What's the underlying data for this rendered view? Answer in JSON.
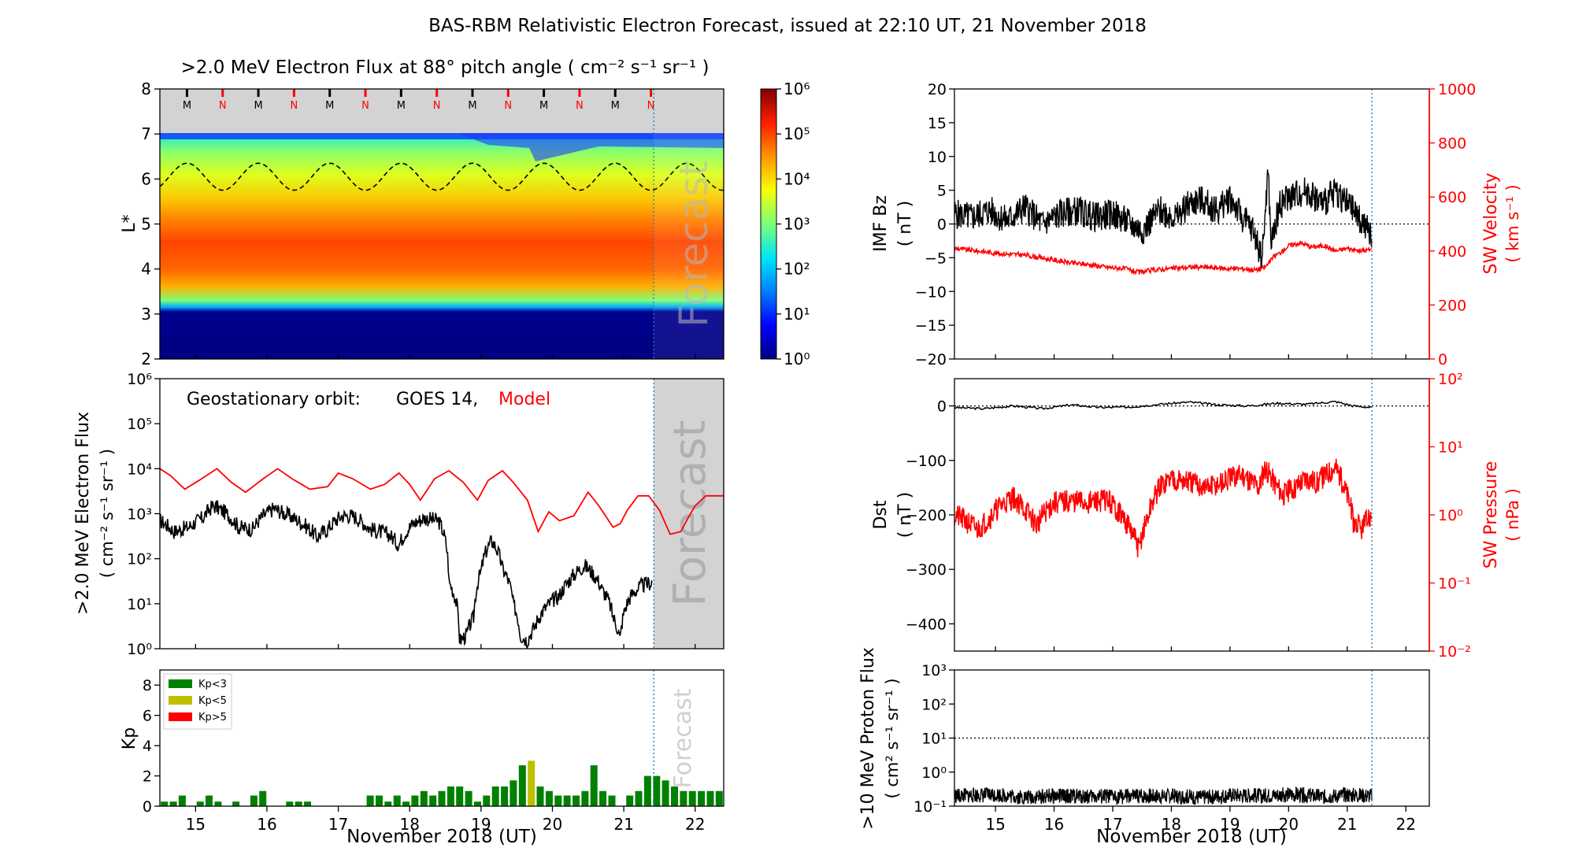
{
  "title": "BAS-RBM Relativistic Electron Forecast, issued at 22:10 UT, 21 November 2018",
  "colors": {
    "black": "#000000",
    "red": "#ff0000",
    "green": "#008000",
    "olive": "#bfbf00",
    "gray": "#d3d3d3",
    "forecast_line": "#1f77b4"
  },
  "chart_data": [
    {
      "id": "lstar",
      "type": "heatmap",
      "title": ">2.0 MeV Electron Flux at 88° pitch angle ( cm⁻² s⁻¹ sr⁻¹ )",
      "ylabel": "L*",
      "ylim": [
        2,
        8
      ],
      "yticks": [
        "2",
        "3",
        "4",
        "5",
        "6",
        "7",
        "8"
      ],
      "xlim": [
        14.5,
        22.4
      ],
      "colorbar": {
        "scale": "log",
        "ticks": [
          "10⁰",
          "10¹",
          "10²",
          "10³",
          "10⁴",
          "10⁵",
          "10⁶"
        ]
      },
      "profile": [
        {
          "L": 2.0,
          "log_flux": 0
        },
        {
          "L": 3.05,
          "log_flux": 0.1
        },
        {
          "L": 3.15,
          "log_flux": 1.8
        },
        {
          "L": 3.3,
          "log_flux": 3.0
        },
        {
          "L": 3.6,
          "log_flux": 4.3
        },
        {
          "L": 4.0,
          "log_flux": 4.8
        },
        {
          "L": 4.6,
          "log_flux": 5.0
        },
        {
          "L": 5.1,
          "log_flux": 4.6
        },
        {
          "L": 5.6,
          "log_flux": 4.1
        },
        {
          "L": 6.1,
          "log_flux": 3.6
        },
        {
          "L": 6.6,
          "log_flux": 3.1
        },
        {
          "L": 7.0,
          "log_flux": 2.4
        }
      ],
      "markers": [
        "M",
        "N",
        "M",
        "N",
        "M",
        "N",
        "M",
        "N",
        "M",
        "N",
        "M",
        "N",
        "M",
        "N"
      ],
      "magnetopause": {
        "mean": 6.05,
        "amplitude": 0.3
      },
      "forecast_label": "Forecast",
      "forecast_start": 21.42
    },
    {
      "id": "goes",
      "type": "line",
      "ylabel": ">2.0 MeV Electron Flux",
      "ylabel_units": "( cm⁻² s⁻¹ sr⁻¹ )",
      "yscale": "log",
      "ylim": [
        1,
        1000000
      ],
      "yticks": [
        "10⁰",
        "10¹",
        "10²",
        "10³",
        "10⁴",
        "10⁵",
        "10⁶"
      ],
      "xlim": [
        14.5,
        22.4
      ],
      "legend_prefix": "Geostationary orbit:",
      "legend_goes": "GOES 14,",
      "legend_model": "Model",
      "forecast_label": "Forecast",
      "series": [
        {
          "name": "GOES 14",
          "color": "#000000",
          "x": [
            14.5,
            14.7,
            14.9,
            15.1,
            15.25,
            15.4,
            15.6,
            15.8,
            15.95,
            16.1,
            16.25,
            16.5,
            16.7,
            16.85,
            17.05,
            17.2,
            17.45,
            17.7,
            17.85,
            18.05,
            18.2,
            18.4,
            18.55,
            18.7,
            18.8,
            18.9,
            19.0,
            19.15,
            19.3,
            19.45,
            19.55,
            19.65,
            19.75,
            19.9,
            20.1,
            20.25,
            20.45,
            20.55,
            20.7,
            20.85,
            20.95,
            21.1,
            21.25,
            21.4
          ],
          "y": [
            700,
            400,
            500,
            800,
            1500,
            1100,
            500,
            450,
            900,
            1300,
            1000,
            600,
            300,
            450,
            900,
            900,
            450,
            350,
            200,
            600,
            800,
            700,
            30,
            1.5,
            2,
            5,
            50,
            250,
            60,
            10,
            2,
            1.5,
            3,
            8,
            15,
            35,
            70,
            50,
            20,
            5,
            1.5,
            15,
            25,
            30
          ]
        },
        {
          "name": "Model",
          "color": "#ff0000",
          "x": [
            14.5,
            14.65,
            14.85,
            15.05,
            15.3,
            15.5,
            15.7,
            15.95,
            16.15,
            16.35,
            16.6,
            16.85,
            17.0,
            17.2,
            17.45,
            17.65,
            17.85,
            18.0,
            18.15,
            18.35,
            18.55,
            18.75,
            18.95,
            19.1,
            19.3,
            19.45,
            19.65,
            19.8,
            19.95,
            20.1,
            20.3,
            20.5,
            20.65,
            20.85,
            20.95,
            21.05,
            21.2,
            21.35,
            21.5,
            21.65,
            21.8,
            21.9,
            22.0,
            22.15,
            22.4
          ],
          "y": [
            10000,
            7000,
            3500,
            5500,
            10000,
            5000,
            3000,
            6000,
            10000,
            6000,
            3500,
            4000,
            8000,
            6000,
            3500,
            4500,
            8000,
            4500,
            2000,
            6000,
            9000,
            5000,
            2000,
            5500,
            9000,
            5000,
            2000,
            400,
            1100,
            700,
            900,
            3000,
            1500,
            500,
            600,
            1200,
            2500,
            2500,
            1200,
            350,
            400,
            800,
            1500,
            2500,
            2500
          ]
        }
      ]
    },
    {
      "id": "kp",
      "type": "bar",
      "ylabel": "Kp",
      "ylim": [
        0,
        9
      ],
      "yticks": [
        "0",
        "2",
        "4",
        "6",
        "8"
      ],
      "xlim": [
        14.5,
        22.4
      ],
      "xticks": [
        "15",
        "16",
        "17",
        "18",
        "19",
        "20",
        "21",
        "22"
      ],
      "xlabel": "November 2018 (UT)",
      "forecast_label": "Forecast",
      "legend": [
        {
          "label": "Kp<3",
          "color": "#008000"
        },
        {
          "label": "Kp<5",
          "color": "#bfbf00"
        },
        {
          "label": "Kp>5",
          "color": "#ff0000"
        }
      ],
      "values": [
        0.3,
        0.3,
        0.7,
        0,
        0.3,
        0.7,
        0.3,
        0,
        0.3,
        0,
        0.7,
        1.0,
        0,
        0,
        0.3,
        0.3,
        0.3,
        0,
        0,
        0,
        0,
        0,
        0,
        0.7,
        0.7,
        0.3,
        0.7,
        0.3,
        0.7,
        1.0,
        0.7,
        1.0,
        1.3,
        1.3,
        1.0,
        0.3,
        0.7,
        1.3,
        1.3,
        1.7,
        2.7,
        3.0,
        1.3,
        1.0,
        0.7,
        0.7,
        0.7,
        1.0,
        2.7,
        1.0,
        0.7,
        0,
        0.7,
        1.0,
        2.0,
        2.0,
        1.7,
        1.3,
        1.0,
        1.0,
        1.0,
        1.0,
        1.0
      ]
    },
    {
      "id": "imf",
      "type": "line",
      "ylabel": "IMF Bz",
      "ylabel_units": "( nT )",
      "ylim": [
        -20,
        20
      ],
      "yticks": [
        "−20",
        "−15",
        "−10",
        "−5",
        "0",
        "5",
        "10",
        "15",
        "20"
      ],
      "y2label": "SW Velocity",
      "y2label_units": "( km s⁻¹ )",
      "y2lim": [
        0,
        1000
      ],
      "y2ticks": [
        "0",
        "200",
        "400",
        "600",
        "800",
        "1000"
      ],
      "xlim": [
        14.3,
        22.4
      ],
      "series": [
        {
          "name": "IMF Bz",
          "color": "#000000",
          "x": [
            14.3,
            14.6,
            14.9,
            15.2,
            15.5,
            15.8,
            16.1,
            16.4,
            16.7,
            17.0,
            17.3,
            17.5,
            17.8,
            18.1,
            18.3,
            18.5,
            18.8,
            19.0,
            19.2,
            19.4,
            19.55,
            19.65,
            19.7,
            19.85,
            20.0,
            20.3,
            20.6,
            20.8,
            21.0,
            21.2,
            21.42
          ],
          "y": [
            1.5,
            1,
            2,
            0.5,
            2.5,
            0,
            1.5,
            2,
            1,
            1.5,
            0,
            -1,
            2,
            1,
            3,
            3.5,
            2,
            4,
            1,
            -1,
            -5,
            8,
            -3,
            3,
            4,
            5,
            3,
            5,
            3,
            1,
            -2
          ]
        },
        {
          "name": "SW Velocity",
          "color": "#ff0000",
          "axis": "y2",
          "x": [
            14.3,
            14.7,
            15.1,
            15.5,
            15.9,
            16.3,
            16.6,
            16.9,
            17.2,
            17.45,
            17.7,
            18.0,
            18.3,
            18.6,
            18.9,
            19.2,
            19.45,
            19.6,
            19.75,
            19.9,
            20.0,
            20.2,
            20.4,
            20.6,
            20.8,
            21.0,
            21.2,
            21.42
          ],
          "y": [
            410,
            400,
            390,
            385,
            370,
            355,
            350,
            340,
            335,
            320,
            330,
            335,
            340,
            340,
            335,
            335,
            330,
            340,
            380,
            400,
            420,
            430,
            415,
            420,
            400,
            410,
            400,
            405
          ]
        }
      ]
    },
    {
      "id": "dst",
      "type": "line",
      "ylabel": "Dst",
      "ylabel_units": "( nT )",
      "ylim": [
        -450,
        50
      ],
      "yticks": [
        "−400",
        "−300",
        "−200",
        "−100",
        "0"
      ],
      "y2label": "SW Pressure",
      "y2label_units": "( nPa )",
      "y2scale": "log",
      "y2lim": [
        0.01,
        100
      ],
      "y2ticks": [
        "10⁻²",
        "10⁻¹",
        "10⁰",
        "10¹",
        "10²"
      ],
      "xlim": [
        14.3,
        22.4
      ],
      "series": [
        {
          "name": "Dst",
          "color": "#000000",
          "x": [
            14.3,
            14.8,
            15.3,
            15.8,
            16.3,
            16.8,
            17.3,
            17.8,
            18.3,
            18.8,
            19.3,
            19.8,
            20.3,
            20.8,
            21.1,
            21.42
          ],
          "y": [
            -3,
            -5,
            0,
            -5,
            2,
            -3,
            -2,
            3,
            7,
            2,
            0,
            5,
            3,
            8,
            0,
            -3
          ]
        },
        {
          "name": "SW Pressure",
          "color": "#ff0000",
          "axis": "y2",
          "x": [
            14.3,
            14.5,
            14.7,
            14.9,
            15.1,
            15.3,
            15.5,
            15.7,
            16.0,
            16.3,
            16.6,
            16.9,
            17.1,
            17.3,
            17.45,
            17.6,
            17.8,
            18.0,
            18.3,
            18.6,
            18.9,
            19.2,
            19.5,
            19.6,
            19.75,
            19.9,
            20.1,
            20.3,
            20.5,
            20.65,
            20.8,
            20.95,
            21.1,
            21.25,
            21.42
          ],
          "y": [
            1.0,
            0.8,
            0.6,
            0.9,
            1.4,
            1.8,
            1.2,
            0.7,
            1.5,
            1.6,
            1.5,
            1.7,
            1.1,
            0.6,
            0.3,
            0.9,
            2.5,
            3.5,
            3.0,
            2.5,
            3.0,
            4.0,
            2.5,
            5.0,
            3.0,
            2.0,
            2.5,
            3.5,
            3.0,
            4.0,
            5.0,
            2.5,
            0.8,
            0.6,
            1.0
          ]
        }
      ]
    },
    {
      "id": "proton",
      "type": "line",
      "ylabel": ">10 MeV Proton Flux",
      "ylabel_units": "( cm² s⁻¹ sr⁻¹ )",
      "yscale": "log",
      "ylim": [
        0.1,
        1000
      ],
      "yticks": [
        "10⁻¹",
        "10⁰",
        "10¹",
        "10²",
        "10³"
      ],
      "xlim": [
        14.3,
        22.4
      ],
      "xticks": [
        "15",
        "16",
        "17",
        "18",
        "19",
        "20",
        "21",
        "22"
      ],
      "xlabel": "November 2018 (UT)",
      "threshold": 10,
      "series": [
        {
          "name": "Proton flux",
          "color": "#000000",
          "x": [
            14.3,
            15.0,
            15.5,
            16.0,
            17.0,
            18.0,
            18.5,
            19.0,
            19.6,
            20.0,
            20.6,
            21.0,
            21.42
          ],
          "y": [
            0.2,
            0.22,
            0.18,
            0.2,
            0.19,
            0.2,
            0.18,
            0.21,
            0.2,
            0.22,
            0.19,
            0.21,
            0.2
          ]
        }
      ]
    }
  ]
}
